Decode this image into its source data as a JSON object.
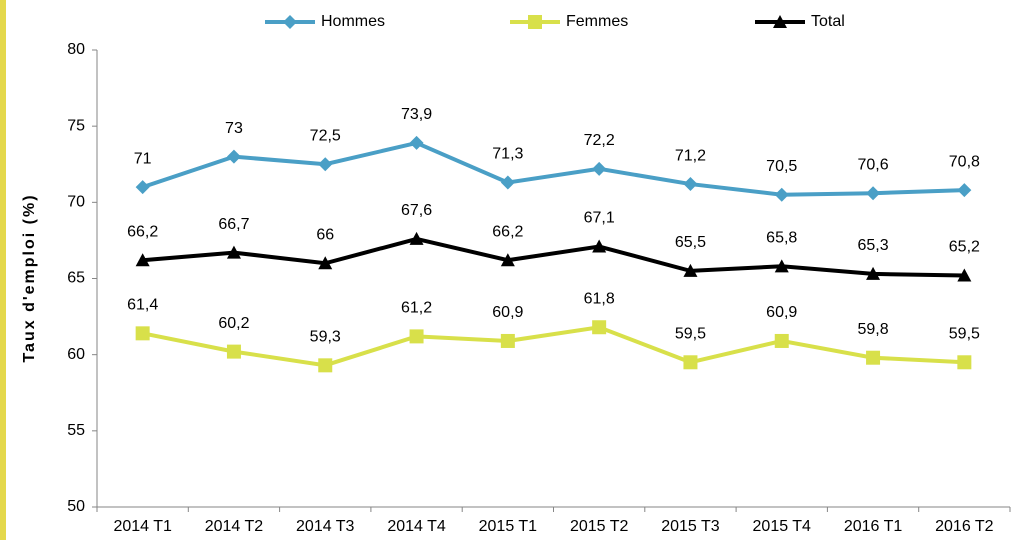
{
  "chart_data": {
    "type": "line",
    "categories": [
      "2014 T1",
      "2014 T2",
      "2014 T3",
      "2014 T4",
      "2015 T1",
      "2015 T2",
      "2015 T3",
      "2015 T4",
      "2016 T1",
      "2016 T2"
    ],
    "series": [
      {
        "name": "Hommes",
        "color": "#4a9fc6",
        "marker": "diamond",
        "values": [
          71,
          73,
          72.5,
          73.9,
          71.3,
          72.2,
          71.2,
          70.5,
          70.6,
          70.8
        ],
        "value_labels": [
          "71",
          "73",
          "72,5",
          "73,9",
          "71,3",
          "72,2",
          "71,2",
          "70,5",
          "70,6",
          "70,8"
        ]
      },
      {
        "name": "Femmes",
        "color": "#d8e04a",
        "marker": "square",
        "values": [
          61.4,
          60.2,
          59.3,
          61.2,
          60.9,
          61.8,
          59.5,
          60.9,
          59.8,
          59.5
        ],
        "value_labels": [
          "61,4",
          "60,2",
          "59,3",
          "61,2",
          "60,9",
          "61,8",
          "59,5",
          "60,9",
          "59,8",
          "59,5"
        ]
      },
      {
        "name": "Total",
        "color": "#000000",
        "marker": "triangle",
        "values": [
          66.2,
          66.7,
          66,
          67.6,
          66.2,
          67.1,
          65.5,
          65.8,
          65.3,
          65.2
        ],
        "value_labels": [
          "66,2",
          "66,7",
          "66",
          "67,6",
          "66,2",
          "67,1",
          "65,5",
          "65,8",
          "65,3",
          "65,2"
        ]
      }
    ],
    "y_label": "Taux d'emploi (%)",
    "ylim": [
      50,
      80
    ],
    "yticks": [
      50,
      55,
      60,
      65,
      70,
      75,
      80
    ],
    "grid": false,
    "legend": "top"
  }
}
